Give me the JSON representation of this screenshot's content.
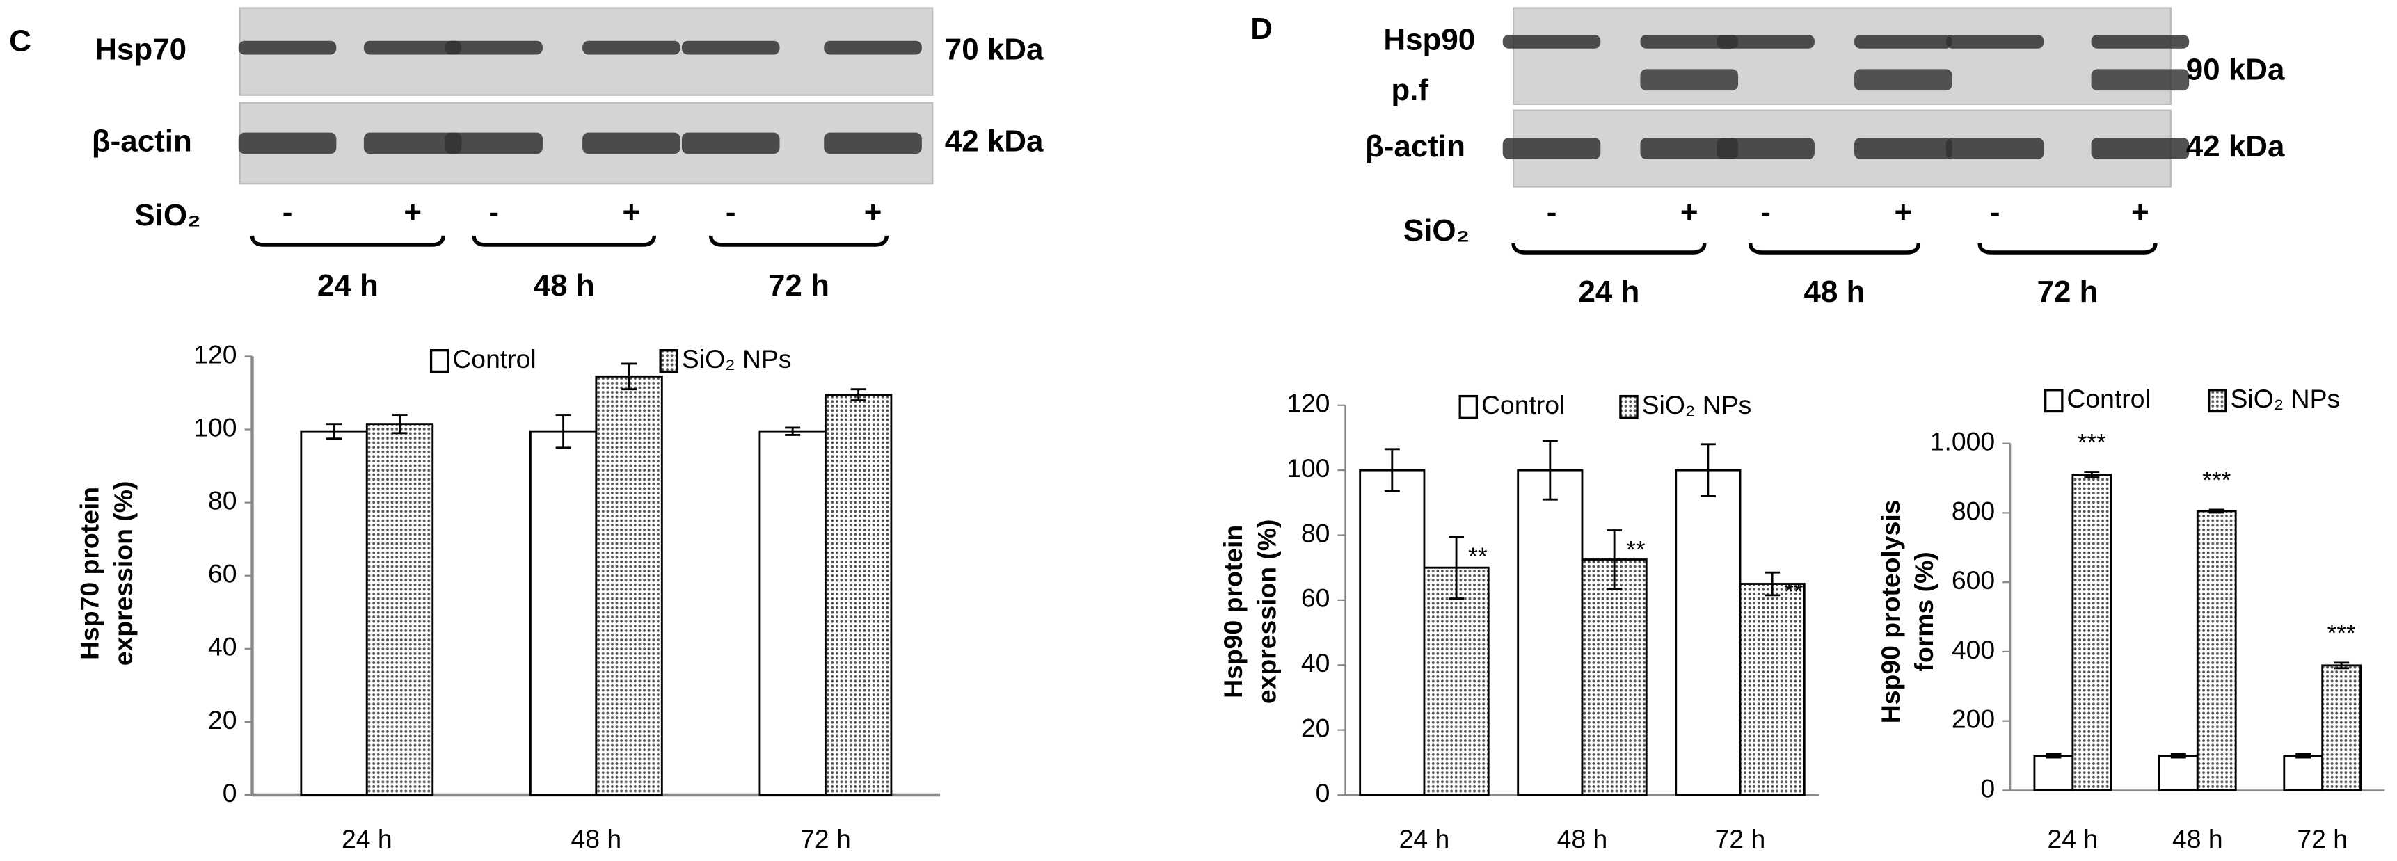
{
  "panel_labels": [
    "C",
    "D"
  ],
  "blots": [
    {
      "rows": [
        {
          "protein": "Hsp70",
          "size": "70 kDa"
        },
        {
          "protein": "β-actin",
          "size": "42 kDa"
        }
      ],
      "treatment": "SiO₂",
      "lanes": [
        "-",
        "+",
        "-",
        "+",
        "-",
        "+"
      ],
      "timepoints": [
        "24 h",
        "48 h",
        "72 h"
      ]
    },
    {
      "rows": [
        {
          "protein": "Hsp90",
          "sublabel": "p.f",
          "size": "90 kDa"
        },
        {
          "protein": "β-actin",
          "size": "42 kDa"
        }
      ],
      "treatment": "SiO₂",
      "lanes": [
        "-",
        "+",
        "-",
        "+",
        "-",
        "+"
      ],
      "timepoints": [
        "24 h",
        "48 h",
        "72 h"
      ]
    }
  ],
  "chart_data": [
    {
      "type": "bar",
      "ylabel": [
        "Hsp70  protein",
        "expression (%)"
      ],
      "categories": [
        "24 h",
        "48 h",
        "72 h"
      ],
      "series": [
        {
          "name": "Control",
          "color": "#ffffff",
          "values": [
            99.5,
            99.5,
            99.5
          ],
          "errors": [
            2,
            4.5,
            1
          ]
        },
        {
          "name": "SiO₂ NPs",
          "color": "#555555",
          "pattern": "dots",
          "values": [
            101.5,
            114.5,
            109.5
          ],
          "errors": [
            2.5,
            3.5,
            1.5
          ]
        }
      ],
      "ylim": [
        0,
        120
      ],
      "yticks": [
        0,
        20,
        40,
        60,
        80,
        100,
        120
      ],
      "grid": false
    },
    {
      "type": "bar",
      "ylabel": [
        "Hsp90  protein",
        "expression (%)"
      ],
      "categories": [
        "24 h",
        "48 h",
        "72 h"
      ],
      "series": [
        {
          "name": "Control",
          "color": "#ffffff",
          "values": [
            100,
            100,
            100
          ],
          "errors": [
            6.5,
            9,
            8
          ]
        },
        {
          "name": "SiO₂ NPs",
          "color": "#555555",
          "pattern": "dots",
          "values": [
            70,
            72.5,
            65
          ],
          "errors": [
            9.5,
            9,
            3.5
          ],
          "annotations": [
            "**",
            "**",
            "**"
          ]
        }
      ],
      "ylim": [
        0,
        120
      ],
      "yticks": [
        0,
        20,
        40,
        60,
        80,
        100,
        120
      ],
      "grid": false
    },
    {
      "type": "bar",
      "ylabel": [
        "Hsp90  proteolysis",
        "forms (%)"
      ],
      "categories": [
        "24 h",
        "48 h",
        "72 h"
      ],
      "series": [
        {
          "name": "Control",
          "color": "#ffffff",
          "values": [
            100,
            100,
            100
          ],
          "errors": [
            5,
            5,
            5
          ]
        },
        {
          "name": "SiO₂ NPs",
          "color": "#555555",
          "pattern": "dots",
          "values": [
            910,
            805,
            360
          ],
          "errors": [
            8,
            4,
            8
          ],
          "annotations": [
            "***",
            "***",
            "***"
          ]
        }
      ],
      "ylim": [
        0,
        1000
      ],
      "yticks": [
        0,
        200,
        400,
        600,
        800,
        {
          "value": 1000,
          "label": "1.000"
        }
      ],
      "grid": false
    }
  ]
}
